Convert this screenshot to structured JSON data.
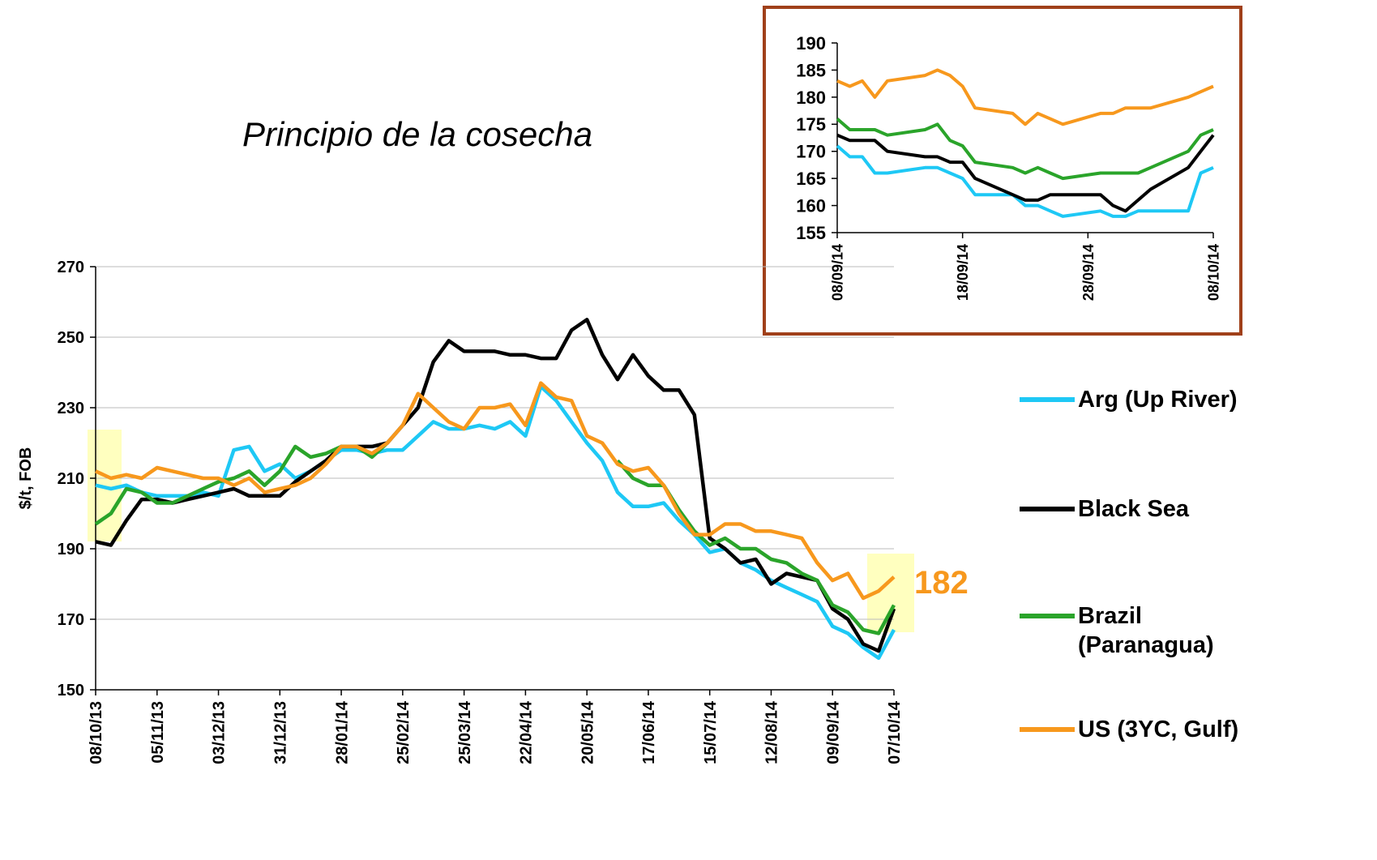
{
  "chart_data": [
    {
      "type": "line",
      "title": "Principio de la cosecha",
      "y_label": "$/t, FOB",
      "annotation": "182",
      "x": [
        "08/10/13",
        "15/10/13",
        "22/10/13",
        "29/10/13",
        "05/11/13",
        "12/11/13",
        "19/11/13",
        "26/11/13",
        "03/12/13",
        "10/12/13",
        "17/12/13",
        "24/12/13",
        "31/12/13",
        "07/01/14",
        "14/01/14",
        "21/01/14",
        "28/01/14",
        "04/02/14",
        "11/02/14",
        "18/02/14",
        "25/02/14",
        "04/03/14",
        "11/03/14",
        "18/03/14",
        "25/03/14",
        "01/04/14",
        "08/04/14",
        "15/04/14",
        "22/04/14",
        "29/04/14",
        "06/05/14",
        "13/05/14",
        "20/05/14",
        "27/05/14",
        "03/06/14",
        "10/06/14",
        "17/06/14",
        "24/06/14",
        "01/07/14",
        "08/07/14",
        "15/07/14",
        "22/07/14",
        "29/07/14",
        "05/08/14",
        "12/08/14",
        "19/08/14",
        "26/08/14",
        "02/09/14",
        "09/09/14",
        "16/09/14",
        "23/09/14",
        "30/09/14",
        "07/10/14"
      ],
      "series": [
        {
          "name": "Arg (Up River)",
          "color": "#1ec8f5",
          "values": [
            208,
            207,
            208,
            206,
            205,
            205,
            205,
            206,
            205,
            218,
            219,
            212,
            214,
            210,
            212,
            215,
            218,
            218,
            217,
            218,
            218,
            222,
            226,
            224,
            224,
            225,
            224,
            226,
            222,
            236,
            232,
            226,
            220,
            215,
            206,
            202,
            202,
            203,
            198,
            194,
            189,
            190,
            186,
            184,
            181,
            179,
            177,
            175,
            168,
            166,
            162,
            159,
            167
          ]
        },
        {
          "name": "Black Sea",
          "color": "#000000",
          "values": [
            192,
            191,
            198,
            204,
            204,
            203,
            204,
            205,
            206,
            207,
            205,
            205,
            205,
            209,
            212,
            215,
            219,
            219,
            219,
            220,
            225,
            230,
            243,
            249,
            246,
            246,
            246,
            245,
            245,
            244,
            244,
            252,
            255,
            245,
            238,
            245,
            239,
            235,
            235,
            228,
            193,
            190,
            186,
            187,
            180,
            183,
            182,
            181,
            173,
            170,
            163,
            161,
            173
          ]
        },
        {
          "name": "Brazil (Paranagua)",
          "color": "#2aa42a",
          "values": [
            197,
            200,
            207,
            206,
            203,
            203,
            205,
            207,
            209,
            210,
            212,
            208,
            212,
            219,
            216,
            217,
            219,
            219,
            216,
            220,
            null,
            null,
            null,
            null,
            null,
            null,
            null,
            null,
            null,
            null,
            null,
            null,
            null,
            null,
            215,
            210,
            208,
            208,
            201,
            195,
            191,
            193,
            190,
            190,
            187,
            186,
            183,
            181,
            174,
            172,
            167,
            166,
            174
          ]
        },
        {
          "name": "US (3YC, Gulf)",
          "color": "#f7981d",
          "values": [
            212,
            210,
            211,
            210,
            213,
            212,
            211,
            210,
            210,
            208,
            210,
            206,
            207,
            208,
            210,
            214,
            219,
            219,
            217,
            220,
            225,
            234,
            230,
            226,
            224,
            230,
            230,
            231,
            225,
            237,
            233,
            232,
            222,
            220,
            214,
            212,
            213,
            208,
            200,
            194,
            194,
            197,
            197,
            195,
            195,
            194,
            193,
            186,
            181,
            183,
            176,
            178,
            182
          ]
        }
      ],
      "xlim": [
        "08/10/13",
        "07/10/14"
      ],
      "xticks": [
        "08/10/13",
        "05/11/13",
        "03/12/13",
        "31/12/13",
        "28/01/14",
        "25/02/14",
        "25/03/14",
        "22/04/14",
        "20/05/14",
        "17/06/14",
        "15/07/14",
        "12/08/14",
        "09/09/14",
        "07/10/14"
      ],
      "ylim": [
        150,
        270
      ],
      "yticks": [
        150,
        170,
        190,
        210,
        230,
        250,
        270
      ],
      "grid": true,
      "legend": "right"
    },
    {
      "type": "line",
      "x": [
        "08/09/14",
        "09/09/14",
        "10/09/14",
        "11/09/14",
        "12/09/14",
        "15/09/14",
        "16/09/14",
        "17/09/14",
        "18/09/14",
        "19/09/14",
        "22/09/14",
        "23/09/14",
        "24/09/14",
        "25/09/14",
        "26/09/14",
        "29/09/14",
        "30/09/14",
        "01/10/14",
        "02/10/14",
        "03/10/14",
        "06/10/14",
        "07/10/14",
        "08/10/14"
      ],
      "series": [
        {
          "color": "#1ec8f5",
          "values": [
            171,
            169,
            169,
            166,
            166,
            167,
            167,
            166,
            165,
            162,
            162,
            160,
            160,
            159,
            158,
            159,
            158,
            158,
            159,
            159,
            159,
            166,
            167
          ]
        },
        {
          "color": "#000000",
          "values": [
            173,
            172,
            172,
            172,
            170,
            169,
            169,
            168,
            168,
            165,
            162,
            161,
            161,
            162,
            162,
            162,
            160,
            159,
            161,
            163,
            167,
            170,
            173
          ]
        },
        {
          "color": "#2aa42a",
          "values": [
            176,
            174,
            174,
            174,
            173,
            174,
            175,
            172,
            171,
            168,
            167,
            166,
            167,
            166,
            165,
            166,
            166,
            166,
            166,
            167,
            170,
            173,
            174
          ]
        },
        {
          "color": "#f7981d",
          "values": [
            183,
            182,
            183,
            180,
            183,
            184,
            185,
            184,
            182,
            178,
            177,
            175,
            177,
            176,
            175,
            177,
            177,
            178,
            178,
            178,
            180,
            181,
            182
          ]
        }
      ],
      "xlim": [
        "08/09/14",
        "08/10/14"
      ],
      "xticks": [
        "08/09/14",
        "18/09/14",
        "28/09/14",
        "08/10/14"
      ],
      "ylim": [
        155,
        190
      ],
      "yticks": [
        155,
        160,
        165,
        170,
        175,
        180,
        185,
        190
      ],
      "grid": false
    }
  ]
}
